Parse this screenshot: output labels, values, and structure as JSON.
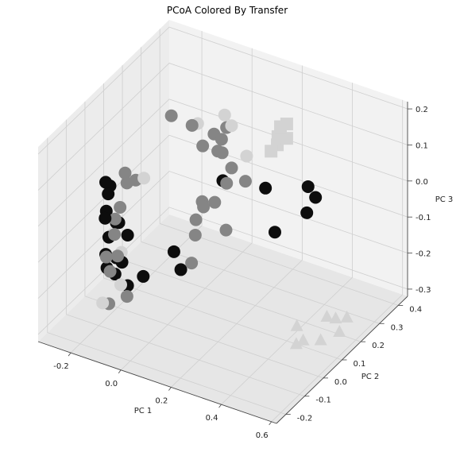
{
  "chart_data": {
    "type": "scatter",
    "title": "PCoA Colored By Transfer",
    "axes": {
      "x": {
        "label": "PC 1",
        "ticks": [
          "-0.2",
          "0.0",
          "0.2",
          "0.4",
          "0.6"
        ]
      },
      "y": {
        "label": "PC 2",
        "ticks": [
          "-0.2",
          "-0.1",
          "0.0",
          "0.1",
          "0.2",
          "0.3",
          "0.4"
        ]
      },
      "z": {
        "label": "PC 3",
        "ticks": [
          "-0.3",
          "-0.2",
          "-0.1",
          "0.0",
          "0.1",
          "0.2"
        ]
      }
    },
    "xlim": [
      -0.33,
      0.62
    ],
    "ylim": [
      -0.25,
      0.45
    ],
    "zlim": [
      -0.32,
      0.22
    ],
    "grid": true,
    "colors": {
      "black": "#0d0d0d",
      "gray": "#858585",
      "light": "#d3d3d3"
    },
    "series": [
      {
        "marker": "circle",
        "color": "black",
        "points": [
          [
            -0.21,
            -0.05,
            0.05
          ],
          [
            -0.2,
            -0.05,
            0.02
          ],
          [
            -0.23,
            0.0,
            0.01
          ],
          [
            -0.19,
            -0.08,
            -0.03
          ],
          [
            -0.23,
            -0.02,
            -0.05
          ],
          [
            -0.22,
            0.02,
            -0.1
          ],
          [
            -0.22,
            -0.02,
            -0.12
          ],
          [
            -0.18,
            -0.02,
            -0.07
          ],
          [
            -0.16,
            0.0,
            -0.11
          ],
          [
            -0.16,
            -0.03,
            -0.17
          ],
          [
            -0.21,
            -0.05,
            -0.15
          ],
          [
            -0.19,
            -0.02,
            -0.17
          ],
          [
            -0.22,
            -0.03,
            -0.2
          ],
          [
            -0.21,
            0.0,
            -0.23
          ],
          [
            -0.12,
            0.03,
            -0.23
          ],
          [
            -0.16,
            0.0,
            -0.25
          ],
          [
            -0.05,
            0.1,
            -0.18
          ],
          [
            -0.03,
            0.11,
            -0.23
          ],
          [
            0.13,
            0.12,
            0.05
          ],
          [
            0.3,
            0.12,
            0.07
          ],
          [
            0.41,
            0.2,
            0.06
          ],
          [
            0.33,
            0.13,
            -0.05
          ],
          [
            0.42,
            0.18,
            0.0
          ],
          [
            0.41,
            0.24,
            0.01
          ]
        ]
      },
      {
        "marker": "circle",
        "color": "gray",
        "points": [
          [
            -0.12,
            0.18,
            0.14
          ],
          [
            -0.17,
            0.0,
            0.06
          ],
          [
            -0.15,
            0.03,
            0.03
          ],
          [
            -0.2,
            0.05,
            0.0
          ],
          [
            -0.19,
            0.0,
            -0.04
          ],
          [
            -0.18,
            -0.04,
            -0.05
          ],
          [
            -0.19,
            -0.03,
            -0.1
          ],
          [
            -0.17,
            -0.04,
            -0.15
          ],
          [
            -0.2,
            -0.06,
            -0.15
          ],
          [
            -0.2,
            -0.04,
            -0.2
          ],
          [
            -0.14,
            -0.03,
            -0.26
          ],
          [
            -0.16,
            -0.1,
            -0.25
          ],
          [
            -0.03,
            0.17,
            0.14
          ],
          [
            0.02,
            0.16,
            0.1
          ],
          [
            0.05,
            0.18,
            0.13
          ],
          [
            0.1,
            0.18,
            0.16
          ],
          [
            0.11,
            0.14,
            0.15
          ],
          [
            0.12,
            0.13,
            0.12
          ],
          [
            0.15,
            0.14,
            0.08
          ],
          [
            0.16,
            0.1,
            0.06
          ],
          [
            0.08,
            0.16,
            0.1
          ],
          [
            0.1,
            0.05,
            0.02
          ],
          [
            0.12,
            0.03,
            0.02
          ],
          [
            0.15,
            0.05,
            0.03
          ],
          [
            0.22,
            0.12,
            0.07
          ],
          [
            0.18,
            0.07,
            -0.05
          ],
          [
            0.06,
            0.07,
            -0.05
          ],
          [
            0.05,
            0.08,
            -0.1
          ],
          [
            0.08,
            0.02,
            -0.14
          ]
        ]
      },
      {
        "marker": "circle",
        "color": "light",
        "points": [
          [
            -0.03,
            0.2,
            0.13
          ],
          [
            0.1,
            0.17,
            0.2
          ],
          [
            0.12,
            0.18,
            0.17
          ],
          [
            0.18,
            0.18,
            0.1
          ],
          [
            -0.11,
            0.02,
            0.05
          ],
          [
            -0.17,
            -0.02,
            -0.15
          ],
          [
            -0.15,
            -0.05,
            -0.22
          ],
          [
            -0.17,
            -0.12,
            -0.24
          ]
        ]
      },
      {
        "marker": "square",
        "color": "light",
        "points": [
          [
            0.3,
            0.2,
            0.2
          ],
          [
            0.31,
            0.22,
            0.2
          ],
          [
            0.29,
            0.2,
            0.17
          ],
          [
            0.31,
            0.22,
            0.16
          ],
          [
            0.28,
            0.21,
            0.14
          ],
          [
            0.27,
            0.19,
            0.13
          ]
        ]
      },
      {
        "marker": "triangle",
        "color": "light",
        "points": [
          [
            0.44,
            0.1,
            -0.27
          ],
          [
            0.5,
            0.18,
            -0.27
          ],
          [
            0.52,
            0.2,
            -0.28
          ],
          [
            0.55,
            0.22,
            -0.28
          ],
          [
            0.55,
            0.18,
            -0.3
          ],
          [
            0.52,
            0.12,
            -0.3
          ],
          [
            0.48,
            0.08,
            -0.29
          ],
          [
            0.46,
            0.07,
            -0.3
          ]
        ]
      }
    ]
  }
}
